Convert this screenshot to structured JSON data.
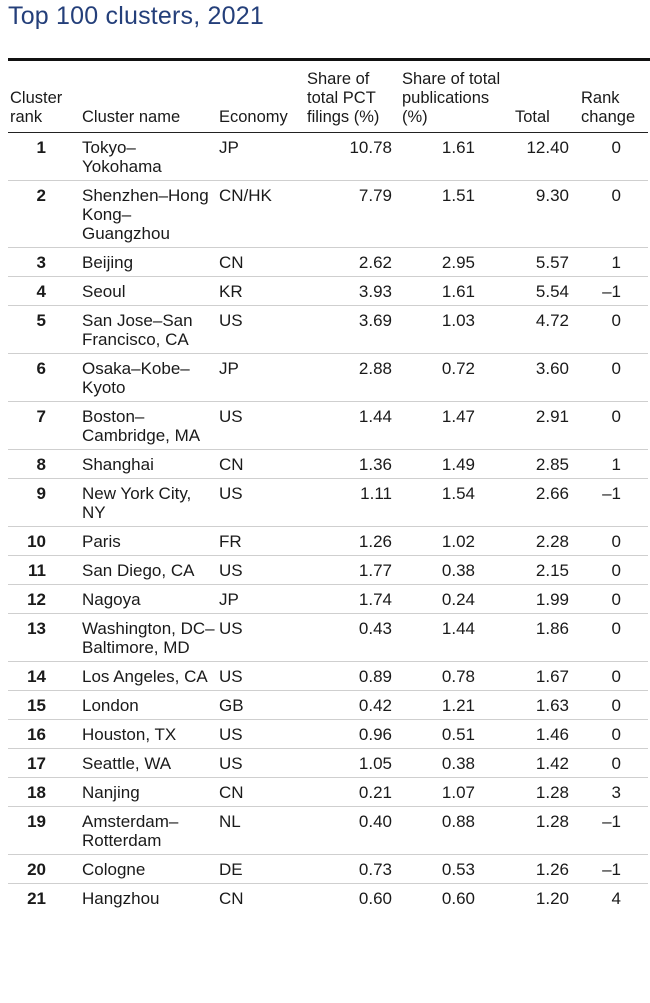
{
  "title": "Top 100 clusters, 2021",
  "headers": {
    "rank": "Cluster rank",
    "name": "Cluster name",
    "economy": "Economy",
    "pct": "Share of total PCT filings (%)",
    "pub": "Share of total publications (%)",
    "total": "Total",
    "change": "Rank change"
  },
  "rows": [
    {
      "rank": "1",
      "name": "Tokyo–Yokohama",
      "economy": "JP",
      "pct": "10.78",
      "pub": "1.61",
      "total": "12.40",
      "change": "0"
    },
    {
      "rank": "2",
      "name": "Shenzhen–Hong Kong–Guangzhou",
      "economy": "CN/HK",
      "pct": "7.79",
      "pub": "1.51",
      "total": "9.30",
      "change": "0"
    },
    {
      "rank": "3",
      "name": "Beijing",
      "economy": "CN",
      "pct": "2.62",
      "pub": "2.95",
      "total": "5.57",
      "change": "1"
    },
    {
      "rank": "4",
      "name": "Seoul",
      "economy": "KR",
      "pct": "3.93",
      "pub": "1.61",
      "total": "5.54",
      "change": "–1"
    },
    {
      "rank": "5",
      "name": "San Jose–San Francisco, CA",
      "economy": "US",
      "pct": "3.69",
      "pub": "1.03",
      "total": "4.72",
      "change": "0"
    },
    {
      "rank": "6",
      "name": "Osaka–Kobe–Kyoto",
      "economy": "JP",
      "pct": "2.88",
      "pub": "0.72",
      "total": "3.60",
      "change": "0"
    },
    {
      "rank": "7",
      "name": "Boston–Cambridge, MA",
      "economy": "US",
      "pct": "1.44",
      "pub": "1.47",
      "total": "2.91",
      "change": "0"
    },
    {
      "rank": "8",
      "name": "Shanghai",
      "economy": "CN",
      "pct": "1.36",
      "pub": "1.49",
      "total": "2.85",
      "change": "1"
    },
    {
      "rank": "9",
      "name": "New York City, NY",
      "economy": "US",
      "pct": "1.11",
      "pub": "1.54",
      "total": "2.66",
      "change": "–1"
    },
    {
      "rank": "10",
      "name": "Paris",
      "economy": "FR",
      "pct": "1.26",
      "pub": "1.02",
      "total": "2.28",
      "change": "0"
    },
    {
      "rank": "11",
      "name": "San Diego, CA",
      "economy": "US",
      "pct": "1.77",
      "pub": "0.38",
      "total": "2.15",
      "change": "0"
    },
    {
      "rank": "12",
      "name": "Nagoya",
      "economy": "JP",
      "pct": "1.74",
      "pub": "0.24",
      "total": "1.99",
      "change": "0"
    },
    {
      "rank": "13",
      "name": "Washington, DC–Baltimore, MD",
      "economy": "US",
      "pct": "0.43",
      "pub": "1.44",
      "total": "1.86",
      "change": "0"
    },
    {
      "rank": "14",
      "name": "Los Angeles, CA",
      "economy": "US",
      "pct": "0.89",
      "pub": "0.78",
      "total": "1.67",
      "change": "0"
    },
    {
      "rank": "15",
      "name": "London",
      "economy": "GB",
      "pct": "0.42",
      "pub": "1.21",
      "total": "1.63",
      "change": "0"
    },
    {
      "rank": "16",
      "name": "Houston, TX",
      "economy": "US",
      "pct": "0.96",
      "pub": "0.51",
      "total": "1.46",
      "change": "0"
    },
    {
      "rank": "17",
      "name": "Seattle, WA",
      "economy": "US",
      "pct": "1.05",
      "pub": "0.38",
      "total": "1.42",
      "change": "0"
    },
    {
      "rank": "18",
      "name": "Nanjing",
      "economy": "CN",
      "pct": "0.21",
      "pub": "1.07",
      "total": "1.28",
      "change": "3"
    },
    {
      "rank": "19",
      "name": "Amsterdam–Rotterdam",
      "economy": "NL",
      "pct": "0.40",
      "pub": "0.88",
      "total": "1.28",
      "change": "–1"
    },
    {
      "rank": "20",
      "name": "Cologne",
      "economy": "DE",
      "pct": "0.73",
      "pub": "0.53",
      "total": "1.26",
      "change": "–1"
    },
    {
      "rank": "21",
      "name": "Hangzhou",
      "economy": "CN",
      "pct": "0.60",
      "pub": "0.60",
      "total": "1.20",
      "change": "4"
    }
  ]
}
